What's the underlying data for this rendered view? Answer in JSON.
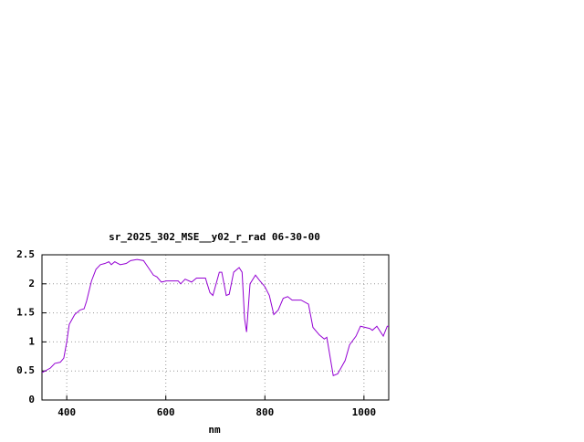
{
  "chart_data": {
    "type": "line",
    "title": "sr_2025_302_MSE__y02_r_rad 06-30-00",
    "x_label": "nm",
    "x": [
      350,
      367,
      376,
      387,
      394,
      400,
      405,
      416,
      427,
      435,
      440,
      450,
      459,
      468,
      477,
      485,
      490,
      497,
      508,
      520,
      529,
      542,
      555,
      567,
      575,
      582,
      591,
      601,
      625,
      630,
      639,
      652,
      662,
      680,
      689,
      695,
      708,
      713,
      722,
      728,
      737,
      748,
      754,
      759,
      763,
      770,
      781,
      790,
      800,
      809,
      818,
      827,
      837,
      846,
      855,
      873,
      888,
      897,
      910,
      920,
      925,
      938,
      947,
      962,
      971,
      984,
      993,
      1012,
      1017,
      1026,
      1039,
      1047,
      1050
    ],
    "series": [
      {
        "color": "#9400d3",
        "values": [
          0.47,
          0.55,
          0.63,
          0.65,
          0.72,
          1.0,
          1.3,
          1.47,
          1.55,
          1.57,
          1.7,
          2.05,
          2.25,
          2.33,
          2.35,
          2.38,
          2.33,
          2.38,
          2.33,
          2.35,
          2.4,
          2.42,
          2.4,
          2.25,
          2.15,
          2.12,
          2.03,
          2.05,
          2.05,
          2.0,
          2.08,
          2.03,
          2.1,
          2.1,
          1.85,
          1.8,
          2.2,
          2.2,
          1.8,
          1.82,
          2.2,
          2.28,
          2.2,
          1.4,
          1.17,
          2.0,
          2.15,
          2.05,
          1.95,
          1.8,
          1.47,
          1.55,
          1.75,
          1.78,
          1.72,
          1.72,
          1.65,
          1.25,
          1.12,
          1.05,
          1.08,
          0.42,
          0.45,
          0.68,
          0.95,
          1.1,
          1.27,
          1.23,
          1.2,
          1.27,
          1.1,
          1.27,
          1.27
        ]
      }
    ],
    "xlim": [
      350,
      1050
    ],
    "xticks": [
      400,
      600,
      800,
      1000
    ],
    "ylim": [
      0,
      2.5
    ],
    "yticks": [
      0,
      0.5,
      1,
      1.5,
      2,
      2.5
    ],
    "grid": true
  }
}
